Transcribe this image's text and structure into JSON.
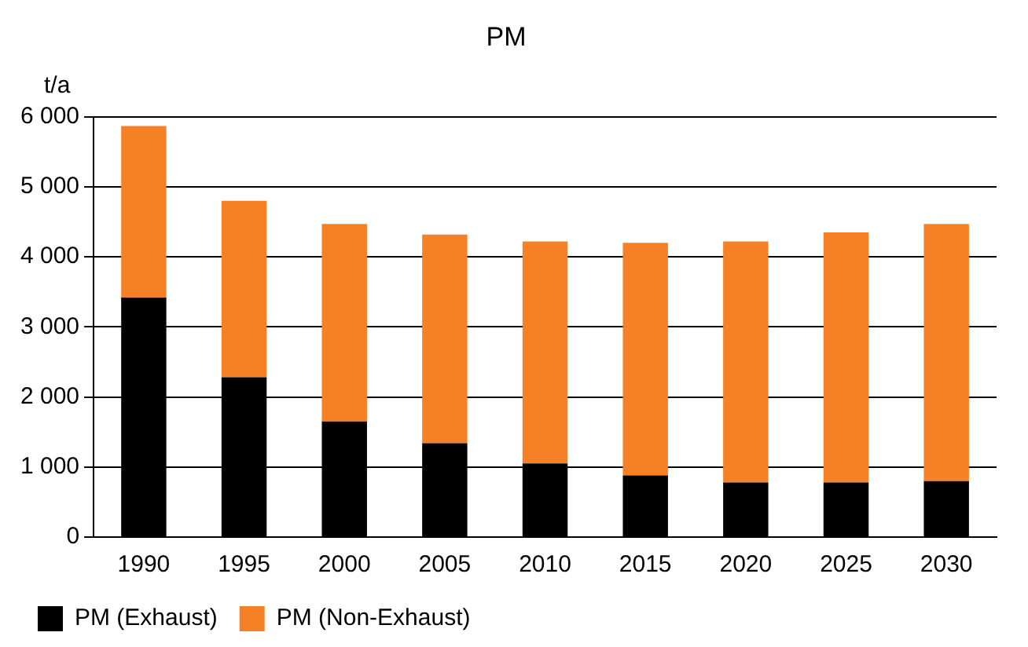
{
  "chart_data": {
    "type": "bar",
    "title": "PM",
    "ylabel": "t/a",
    "stacked": true,
    "categories": [
      "1990",
      "1995",
      "2000",
      "2005",
      "2010",
      "2015",
      "2020",
      "2025",
      "2030"
    ],
    "series": [
      {
        "name": "PM (Exhaust)",
        "color": "#000000",
        "values": [
          3420,
          2280,
          1650,
          1340,
          1050,
          880,
          780,
          780,
          800
        ]
      },
      {
        "name": "PM (Non-Exhaust)",
        "color": "#f58025",
        "values": [
          2450,
          2520,
          2820,
          2980,
          3170,
          3320,
          3440,
          3570,
          3670
        ]
      }
    ],
    "ylim": [
      0,
      6000
    ],
    "yticks": [
      0,
      {
        "value": 1000,
        "label": "1 000"
      },
      {
        "value": 2000,
        "label": "2 000"
      },
      {
        "value": 3000,
        "label": "3 000"
      },
      {
        "value": 4000,
        "label": "4 000"
      },
      {
        "value": 5000,
        "label": "5 000"
      },
      {
        "value": 6000,
        "label": "6 000"
      }
    ],
    "grid": "y",
    "legend": "bottom"
  }
}
